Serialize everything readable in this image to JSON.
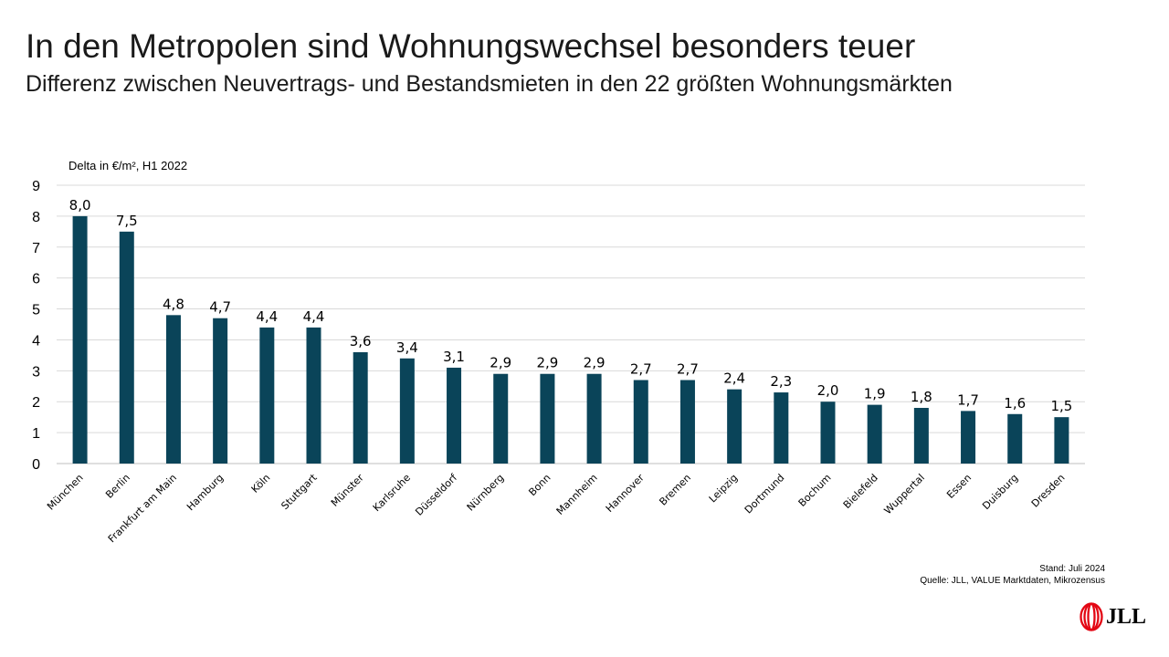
{
  "header": {
    "title": "In den Metropolen sind Wohnungswechsel besonders teuer",
    "subtitle": "Differenz zwischen Neuvertrags- und Bestandsmieten in den 22 größten Wohnungsmärkten"
  },
  "footer": {
    "stand": "Stand: Juli 2024",
    "source": "Quelle: JLL, VALUE Marktdaten, Mikrozensus",
    "logo": "JLL"
  },
  "colors": {
    "bar": "#0a4459",
    "logo_red": "#e30613"
  },
  "chart_data": {
    "type": "bar",
    "title": "In den Metropolen sind Wohnungswechsel besonders teuer",
    "ylabel": "Delta in €/m², H1 2022",
    "xlabel": "",
    "ylim": [
      0,
      9
    ],
    "yticks": [
      0,
      1,
      2,
      3,
      4,
      5,
      6,
      7,
      8,
      9
    ],
    "grid": true,
    "categories": [
      "München",
      "Berlin",
      "Frankfurt am Main",
      "Hamburg",
      "Köln",
      "Stuttgart",
      "Münster",
      "Karlsruhe",
      "Düsseldorf",
      "Nürnberg",
      "Bonn",
      "Mannheim",
      "Hannover",
      "Bremen",
      "Leipzig",
      "Dortmund",
      "Bochum",
      "Bielefeld",
      "Wuppertal",
      "Essen",
      "Duisburg",
      "Dresden"
    ],
    "values": [
      8.0,
      7.5,
      4.8,
      4.7,
      4.4,
      4.4,
      3.6,
      3.4,
      3.1,
      2.9,
      2.9,
      2.9,
      2.7,
      2.7,
      2.4,
      2.3,
      2.0,
      1.9,
      1.8,
      1.7,
      1.6,
      1.5
    ],
    "labels": [
      "8,0",
      "7,5",
      "4,8",
      "4,7",
      "4,4",
      "4,4",
      "3,6",
      "3,4",
      "3,1",
      "2,9",
      "2,9",
      "2,9",
      "2,7",
      "2,7",
      "2,4",
      "2,3",
      "2,0",
      "1,9",
      "1,8",
      "1,7",
      "1,6",
      "1,5"
    ]
  }
}
